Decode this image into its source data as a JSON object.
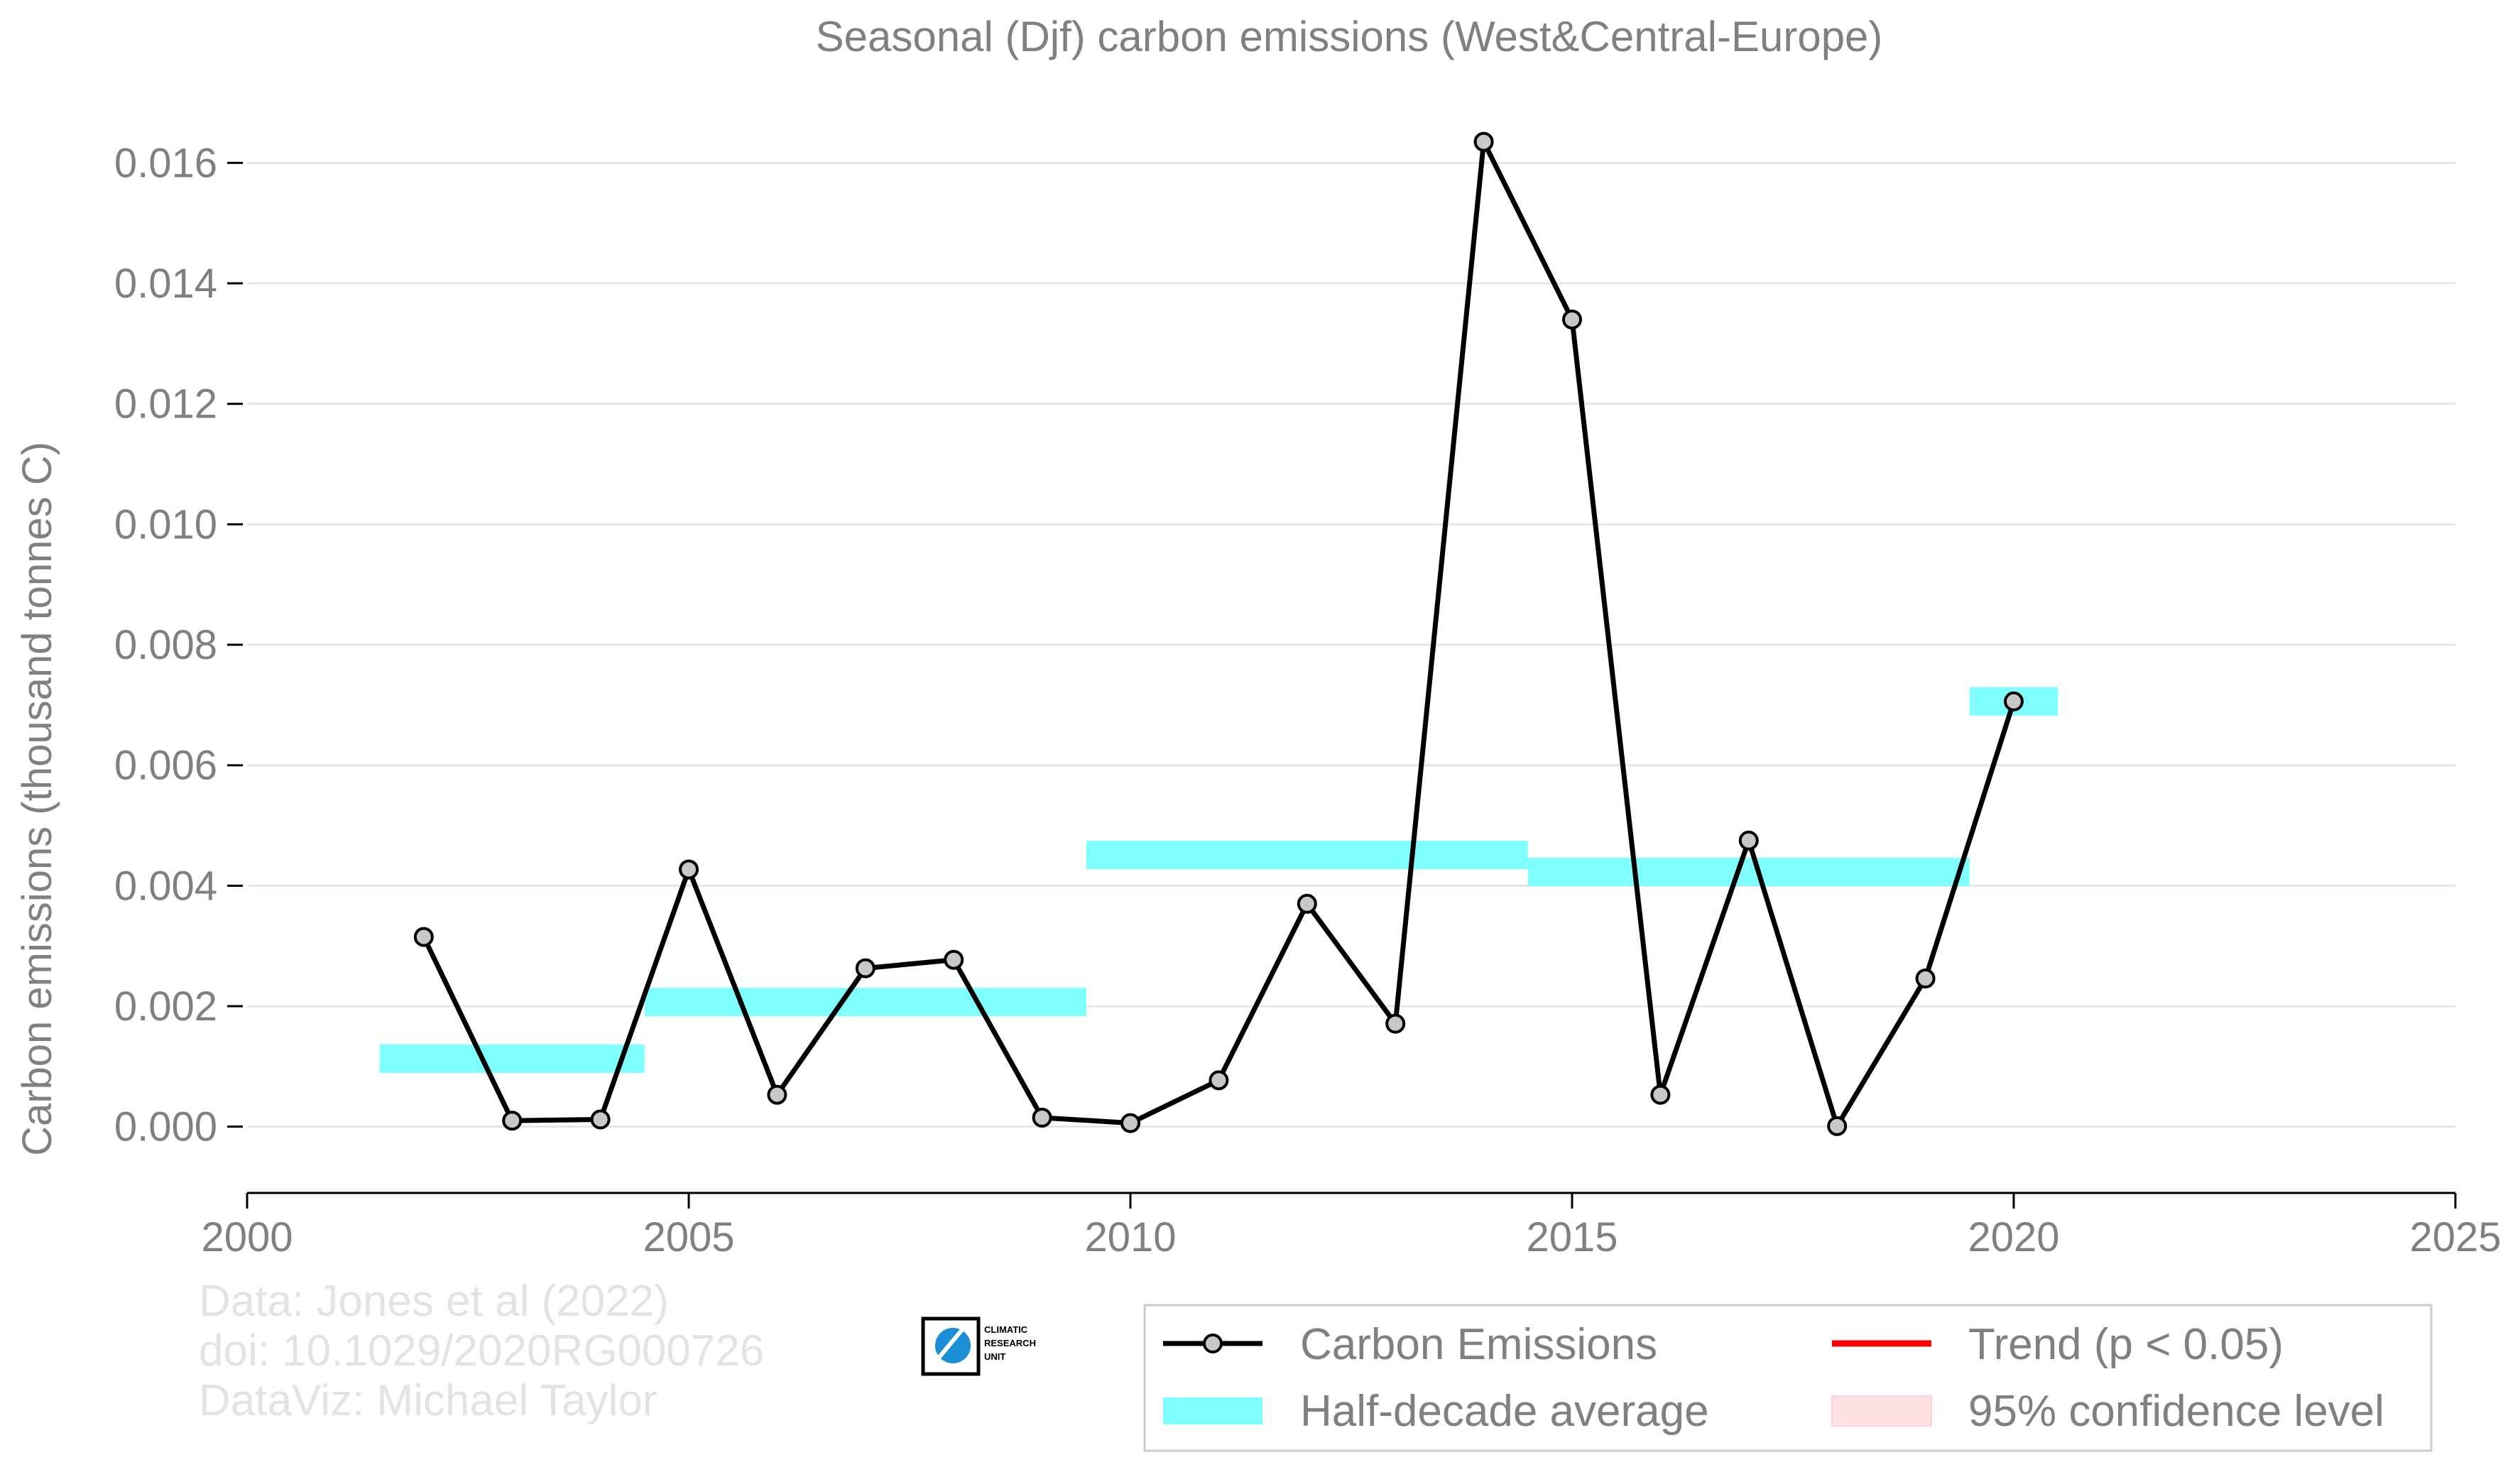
{
  "chart_data": {
    "type": "line",
    "title": "Seasonal (Djf) carbon emissions (West&Central-Europe)",
    "xlabel": "",
    "ylabel": "Carbon emissions (thousand tonnes C)",
    "xlim": [
      2000,
      2025
    ],
    "ylim": [
      -0.0011,
      0.0167
    ],
    "x_ticks": [
      "2000",
      "2005",
      "2010",
      "2015",
      "2020",
      "2025"
    ],
    "x_tick_values": [
      2000,
      2005,
      2010,
      2015,
      2020,
      2025
    ],
    "y_ticks": [
      "0.000",
      "0.002",
      "0.004",
      "0.006",
      "0.008",
      "0.010",
      "0.012",
      "0.014",
      "0.016"
    ],
    "y_tick_values": [
      0,
      0.002,
      0.004,
      0.006,
      0.008,
      0.01,
      0.012,
      0.014,
      0.016
    ],
    "grid": "horizontal",
    "legend_position": "bottom-right",
    "series": [
      {
        "name": "Carbon Emissions",
        "color": "#000000",
        "marker_fill": "#c8c8c8",
        "x": [
          2002,
          2003,
          2004,
          2005,
          2006,
          2007,
          2008,
          2009,
          2010,
          2011,
          2012,
          2013,
          2014,
          2015,
          2016,
          2017,
          2018,
          2019,
          2020
        ],
        "y": [
          0.00315,
          0.0001,
          0.00012,
          0.00427,
          0.00053,
          0.00263,
          0.00277,
          0.00015,
          6e-05,
          0.00077,
          0.0037,
          0.00171,
          0.01635,
          0.0134,
          0.00053,
          0.00475,
          1e-05,
          0.00246,
          0.00706
        ]
      },
      {
        "name": "Half-decade average",
        "color": "#80ffff",
        "segments": [
          {
            "x_start": 2001.5,
            "x_end": 2004.5,
            "y": 0.00113
          },
          {
            "x_start": 2004.5,
            "x_end": 2009.5,
            "y": 0.00207
          },
          {
            "x_start": 2009.5,
            "x_end": 2014.5,
            "y": 0.00451
          },
          {
            "x_start": 2014.5,
            "x_end": 2019.5,
            "y": 0.00423
          },
          {
            "x_start": 2019.5,
            "x_end": 2020.5,
            "y": 0.00706
          }
        ]
      },
      {
        "name": "Trend (p < 0.05)",
        "color": "#ff0000"
      },
      {
        "name": "95% confidence level",
        "color": "#ffe0e3"
      }
    ]
  },
  "credits": {
    "line1": "Data: Jones et al (2022)",
    "line2": "doi: 10.1029/2020RG000726",
    "line3": "DataViz: Michael Taylor"
  },
  "logo": {
    "line1": "CLIMATIC",
    "line2": "RESEARCH",
    "line3": "UNIT",
    "color": "#1a8fd6"
  }
}
